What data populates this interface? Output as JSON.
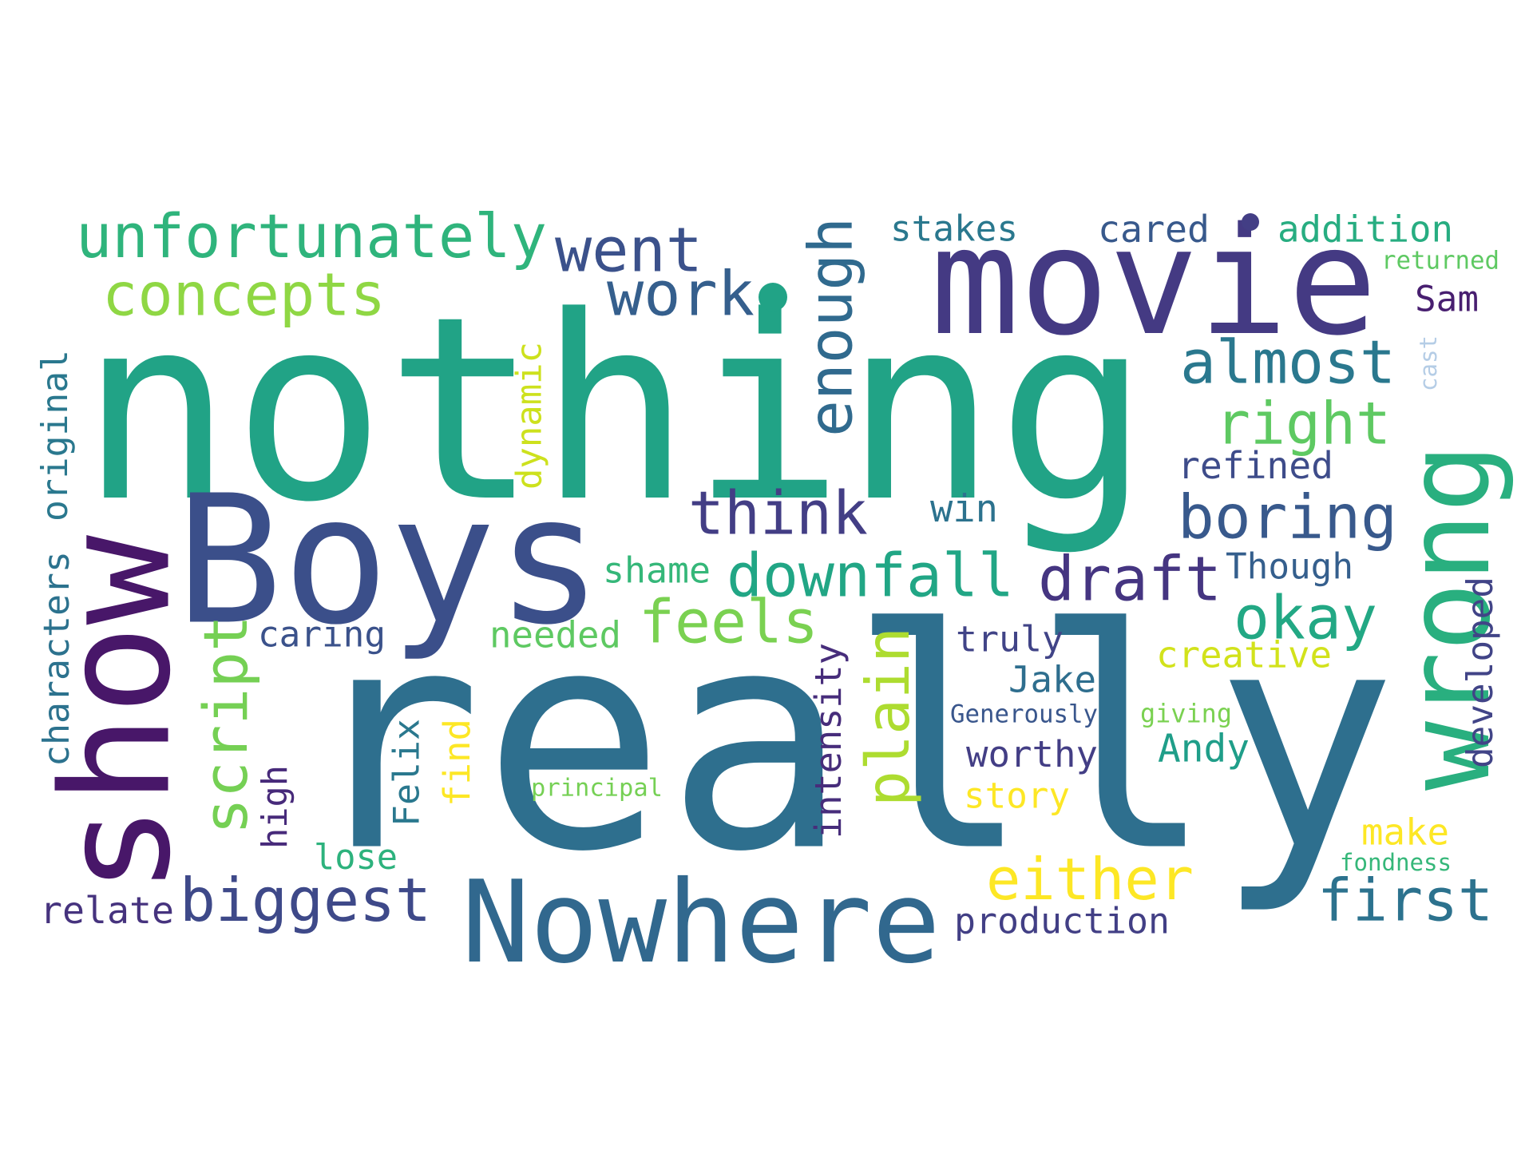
{
  "words": [
    {
      "text": "nothing",
      "color": "#21a386"
    },
    {
      "text": "really",
      "color": "#2e6f8e"
    },
    {
      "text": "Boys",
      "color": "#3b4f8a"
    },
    {
      "text": "movie",
      "color": "#443a83"
    },
    {
      "text": "show",
      "color": "#481769"
    },
    {
      "text": "Nowhere",
      "color": "#31688e"
    },
    {
      "text": "wrong",
      "color": "#29af7f"
    },
    {
      "text": "unfortunately",
      "color": "#2fb47c"
    },
    {
      "text": "concepts",
      "color": "#8fd744"
    },
    {
      "text": "went",
      "color": "#3b518b"
    },
    {
      "text": "work",
      "color": "#355f8d"
    },
    {
      "text": "enough",
      "color": "#306a8e"
    },
    {
      "text": "almost",
      "color": "#2a788e"
    },
    {
      "text": "right",
      "color": "#5ec962"
    },
    {
      "text": "think",
      "color": "#433e85"
    },
    {
      "text": "boring",
      "color": "#38598c"
    },
    {
      "text": "downfall",
      "color": "#21a685"
    },
    {
      "text": "draft",
      "color": "#453581"
    },
    {
      "text": "feels",
      "color": "#7ad151"
    },
    {
      "text": "okay",
      "color": "#22a884"
    },
    {
      "text": "script",
      "color": "#75d054"
    },
    {
      "text": "plain",
      "color": "#addc30"
    },
    {
      "text": "either",
      "color": "#fde725"
    },
    {
      "text": "biggest",
      "color": "#3e4989"
    },
    {
      "text": "first",
      "color": "#2c728e"
    },
    {
      "text": "stakes",
      "color": "#2a788e"
    },
    {
      "text": "cared",
      "color": "#38598c"
    },
    {
      "text": "addition",
      "color": "#27ad81"
    },
    {
      "text": "returned",
      "color": "#5ec962"
    },
    {
      "text": "Sam",
      "color": "#481f70"
    },
    {
      "text": "cast",
      "color": "#b5cde6"
    },
    {
      "text": "refined",
      "color": "#3e4c8a"
    },
    {
      "text": "win",
      "color": "#2c728e"
    },
    {
      "text": "shame",
      "color": "#35b779"
    },
    {
      "text": "Though",
      "color": "#355f8d"
    },
    {
      "text": "dynamic",
      "color": "#cde11d"
    },
    {
      "text": "original",
      "color": "#2a788e"
    },
    {
      "text": "characters",
      "color": "#2c728e"
    },
    {
      "text": "caring",
      "color": "#3b528b"
    },
    {
      "text": "needed",
      "color": "#5ec962"
    },
    {
      "text": "truly",
      "color": "#414487"
    },
    {
      "text": "creative",
      "color": "#d2e21b"
    },
    {
      "text": "developed",
      "color": "#414487"
    },
    {
      "text": "Jake",
      "color": "#2e6e8e"
    },
    {
      "text": "intensity",
      "color": "#472d7b"
    },
    {
      "text": "Generously",
      "color": "#39568c"
    },
    {
      "text": "giving",
      "color": "#7ad151"
    },
    {
      "text": "Felix",
      "color": "#2a788e"
    },
    {
      "text": "find",
      "color": "#fde725"
    },
    {
      "text": "worthy",
      "color": "#433e85"
    },
    {
      "text": "Andy",
      "color": "#1f9e89"
    },
    {
      "text": "high",
      "color": "#472a7a"
    },
    {
      "text": "principal",
      "color": "#75d054"
    },
    {
      "text": "story",
      "color": "#fde725"
    },
    {
      "text": "make",
      "color": "#fde725"
    },
    {
      "text": "lose",
      "color": "#2db27d"
    },
    {
      "text": "fondness",
      "color": "#35b779"
    },
    {
      "text": "relate",
      "color": "#46337e"
    },
    {
      "text": "production",
      "color": "#423f85"
    }
  ],
  "dots": [
    {
      "color": "#21a386"
    },
    {
      "color": "#433e85"
    }
  ]
}
